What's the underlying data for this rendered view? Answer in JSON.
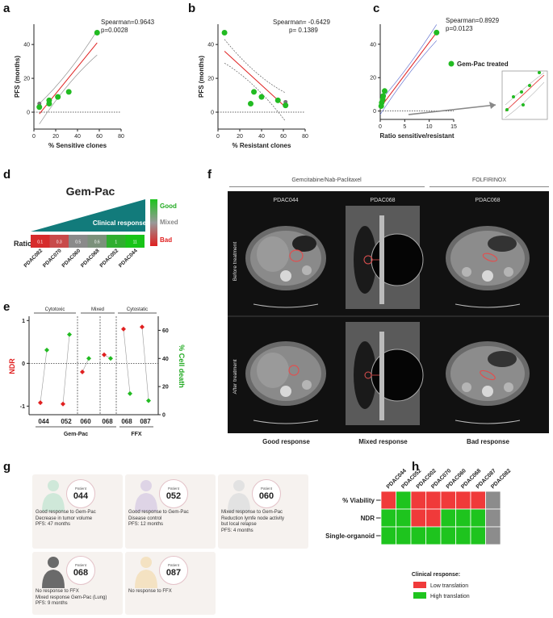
{
  "panels": {
    "a": "a",
    "b": "b",
    "c": "c",
    "d": "d",
    "e": "e",
    "f": "f",
    "g": "g",
    "h": "h"
  },
  "panel_a": {
    "chart_data": {
      "type": "scatter",
      "xlabel": "% Sensitive clones",
      "ylabel": "PFS (months)",
      "xlim": [
        0,
        80
      ],
      "ylim": [
        -10,
        52
      ],
      "xticks": [
        0,
        20,
        40,
        60,
        80
      ],
      "yticks": [
        0,
        20,
        40
      ],
      "points": [
        [
          5,
          3
        ],
        [
          14,
          5
        ],
        [
          14,
          7
        ],
        [
          22,
          9
        ],
        [
          32,
          12
        ],
        [
          58,
          47
        ]
      ],
      "grey_point": [
        5,
        5
      ],
      "fit": [
        [
          5,
          -1
        ],
        [
          58,
          41
        ]
      ],
      "annotation_line1": "Spearman=0.9643",
      "annotation_line2": "p=0.0028"
    }
  },
  "panel_b": {
    "chart_data": {
      "type": "scatter",
      "xlabel": "% Resistant clones",
      "ylabel": "PFS (months)",
      "xlim": [
        0,
        80
      ],
      "ylim": [
        -10,
        52
      ],
      "xticks": [
        0,
        20,
        40,
        60,
        80
      ],
      "yticks": [
        0,
        20,
        40
      ],
      "points": [
        [
          6,
          47
        ],
        [
          33,
          12
        ],
        [
          30,
          5
        ],
        [
          40,
          9
        ],
        [
          55,
          7
        ],
        [
          62,
          4
        ]
      ],
      "grey_point": [
        62,
        6
      ],
      "fit": [
        [
          6,
          36
        ],
        [
          62,
          3
        ]
      ],
      "annotation_line1": "Spearman= -0.6429",
      "annotation_line2": "p= 0.1389"
    }
  },
  "panel_c": {
    "chart_data": {
      "type": "scatter",
      "xlabel": "Ratio sensitive/resistant",
      "ylabel": "PFS (months)",
      "xlim": [
        0,
        15
      ],
      "ylim": [
        -5,
        52
      ],
      "xticks": [
        0,
        5,
        10,
        15
      ],
      "yticks": [
        0,
        20,
        40
      ],
      "points": [
        [
          0.2,
          3
        ],
        [
          0.3,
          5
        ],
        [
          0.5,
          7
        ],
        [
          0.6,
          9
        ],
        [
          0.9,
          12
        ],
        [
          11.5,
          47
        ]
      ],
      "fit": [
        [
          0,
          2
        ],
        [
          11.5,
          47
        ]
      ],
      "annotation_line1": "Spearman=0.8929",
      "annotation_line2": "p=0.0123",
      "legend": "Gem-Pac treated"
    }
  },
  "panel_d": {
    "title": "Gem-Pac",
    "triangle_label": "Clinical response",
    "row_label": "Ratio",
    "scale_good": "Good",
    "scale_mixed": "Mixed",
    "scale_bad": "Bad",
    "cells": [
      {
        "value": "0.1",
        "color": "#d62c2c"
      },
      {
        "value": "0.3",
        "color": "#c84a4a"
      },
      {
        "value": "0.5",
        "color": "#8a8a8a"
      },
      {
        "value": "0.6",
        "color": "#7b917b"
      },
      {
        "value": "1",
        "color": "#2fae2f"
      },
      {
        "value": "11",
        "color": "#17c417"
      }
    ],
    "samples": [
      "PDAC082",
      "PDAC070",
      "PDAC060",
      "PDAC068",
      "PDAC052",
      "PDAC044"
    ]
  },
  "panel_e": {
    "chart_data": {
      "type": "dot",
      "ylabel_left": "NDR",
      "ylabel_right": "% Cell death",
      "ylim_left": [
        -1.2,
        1.1
      ],
      "ylim_right": [
        0,
        70
      ],
      "yticks_left": [
        -1,
        0,
        1
      ],
      "yticks_right": [
        0,
        20,
        40,
        60
      ],
      "groups": [
        "Cytotoxic",
        "Mixed",
        "Cytostatic"
      ],
      "categories": [
        "044",
        "052",
        "060",
        "068",
        "068",
        "087"
      ],
      "treatments": [
        "Gem-Pac",
        "FFX"
      ],
      "ndr": [
        -0.92,
        -0.95,
        -0.2,
        0.2,
        0.8,
        0.85
      ],
      "cell_death": [
        46,
        57,
        40,
        40,
        15,
        10
      ]
    }
  },
  "panel_f": {
    "header_left": "Gemcitabine/Nab-Paclitaxel",
    "header_right": "FOLFIRINOX",
    "col_labels": [
      "PDAC044",
      "PDAC068",
      "PDAC068"
    ],
    "row_labels": [
      "Before treatment",
      "After treatment"
    ],
    "responses": [
      "Good response",
      "Mixed response",
      "Bad response"
    ]
  },
  "panel_g": {
    "cards": [
      {
        "patient_label": "Patient",
        "patient_no": "044",
        "lines": [
          "Good response to Gem-Pac",
          "Decrease in tumor volume",
          "PFS: 47 months"
        ]
      },
      {
        "patient_label": "Patient",
        "patient_no": "052",
        "lines": [
          "Good response to Gem-Pac",
          "Disease control",
          "PFS: 12 months"
        ]
      },
      {
        "patient_label": "Patient",
        "patient_no": "060",
        "lines": [
          "Mixed response to Gem-Pac",
          "Reduction lymfe node activity",
          "but local relapse",
          "PFS: 4 months"
        ]
      },
      {
        "patient_label": "Patient",
        "patient_no": "068",
        "lines": [
          "No response to FFX",
          "Mixed response Gem-Pac (Lung)",
          "PFS: 9 months"
        ]
      },
      {
        "patient_label": "Patient",
        "patient_no": "087",
        "lines": [
          "No response to FFX"
        ]
      }
    ]
  },
  "panel_h": {
    "columns": [
      "PDAC044",
      "PDAC052",
      "PDAC002",
      "PDAC070",
      "PDAC060",
      "PDAC068",
      "PDAC087",
      "PDAC082"
    ],
    "rows": [
      "% Viability",
      "NDR",
      "Single-organoid"
    ],
    "grid": [
      [
        "low",
        "high",
        "low",
        "low",
        "low",
        "low",
        "low",
        "na"
      ],
      [
        "high",
        "high",
        "low",
        "low",
        "high",
        "high",
        "high",
        "na"
      ],
      [
        "high",
        "high",
        "high",
        "high",
        "high",
        "high",
        "high",
        "na"
      ]
    ],
    "legend_title": "Clinical response:",
    "legend_low": "Low translation",
    "legend_high": "High translation",
    "colors": {
      "low": "#f03a3a",
      "high": "#1ec41e",
      "na": "#8c8c8c"
    }
  },
  "colors": {
    "green": "#22bb22",
    "red": "#e02020",
    "teal": "#127b7b"
  }
}
